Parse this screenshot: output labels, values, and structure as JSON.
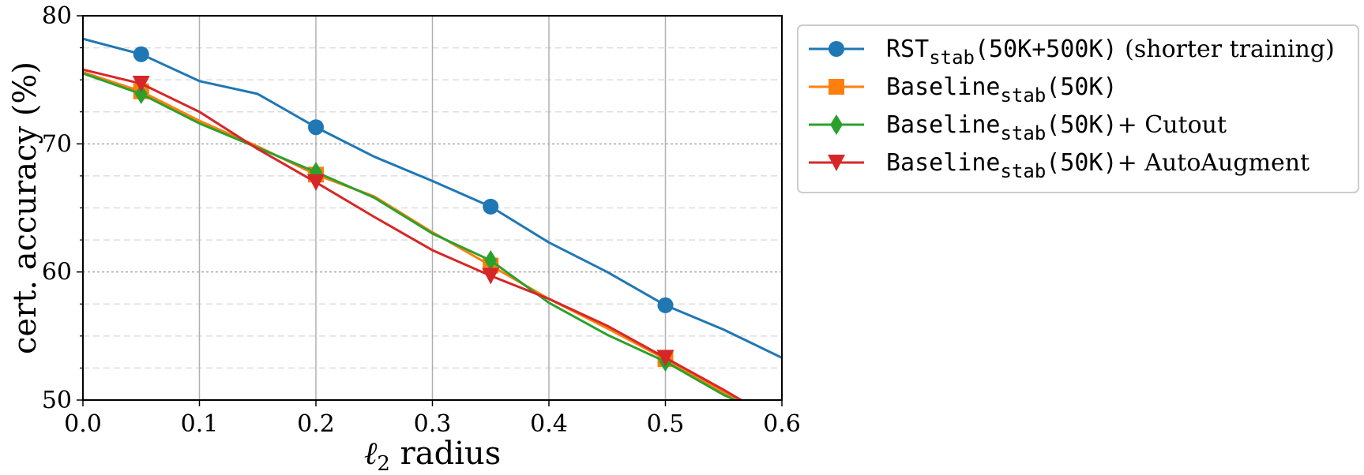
{
  "chart_data": {
    "type": "line",
    "xlabel_prefix": "ℓ",
    "xlabel_sub": "2",
    "xlabel_rest": " radius",
    "ylabel": "cert. accuracy (%)",
    "xlim": [
      0.0,
      0.6
    ],
    "ylim": [
      50,
      80
    ],
    "xticks": [
      0.0,
      0.1,
      0.2,
      0.3,
      0.4,
      0.5,
      0.6
    ],
    "xtick_labels": [
      "0.0",
      "0.1",
      "0.2",
      "0.3",
      "0.4",
      "0.5",
      "0.6"
    ],
    "yticks": [
      50,
      60,
      70,
      80
    ],
    "ytick_labels": [
      "50",
      "60",
      "70",
      "80"
    ],
    "grid": true,
    "legend_position": "outside-right-top",
    "series": [
      {
        "name_main": "RST",
        "name_sub": "stab",
        "name_paren": "(50K+500K)",
        "name_suffix": " (shorter training)",
        "color": "#1f77b4",
        "marker": "circle",
        "x": [
          0.0,
          0.05,
          0.1,
          0.15,
          0.2,
          0.25,
          0.3,
          0.35,
          0.4,
          0.45,
          0.5,
          0.55,
          0.6
        ],
        "values": [
          78.2,
          77.0,
          74.9,
          73.9,
          71.3,
          69.0,
          67.1,
          65.1,
          62.3,
          60.0,
          57.4,
          55.5,
          53.3
        ],
        "marker_x": [
          0.05,
          0.2,
          0.35,
          0.5
        ]
      },
      {
        "name_main": "Baseline",
        "name_sub": "stab",
        "name_paren": "(50K)",
        "name_suffix": "",
        "color": "#ff7f0e",
        "marker": "square",
        "x": [
          0.0,
          0.05,
          0.1,
          0.15,
          0.2,
          0.25,
          0.3,
          0.35,
          0.4,
          0.45,
          0.5,
          0.55,
          0.565
        ],
        "values": [
          75.6,
          74.1,
          71.8,
          69.8,
          67.6,
          65.9,
          63.1,
          60.5,
          57.9,
          55.6,
          53.2,
          50.6,
          50.0
        ],
        "marker_x": [
          0.05,
          0.2,
          0.35,
          0.5
        ]
      },
      {
        "name_main": "Baseline",
        "name_sub": "stab",
        "name_paren": "(50K)",
        "name_suffix": "+ Cutout",
        "color": "#2ca02c",
        "marker": "diamond",
        "x": [
          0.0,
          0.05,
          0.1,
          0.15,
          0.2,
          0.25,
          0.3,
          0.35,
          0.4,
          0.45,
          0.5,
          0.55,
          0.56
        ],
        "values": [
          75.5,
          73.9,
          71.6,
          69.7,
          67.8,
          65.8,
          63.0,
          60.9,
          57.6,
          55.1,
          53.0,
          50.4,
          50.0
        ],
        "marker_x": [
          0.05,
          0.2,
          0.35,
          0.5
        ]
      },
      {
        "name_main": "Baseline",
        "name_sub": "stab",
        "name_paren": "(50K)",
        "name_suffix": "+ AutoAugment",
        "color": "#d62728",
        "marker": "triangle-down",
        "x": [
          0.0,
          0.05,
          0.1,
          0.15,
          0.2,
          0.25,
          0.3,
          0.35,
          0.4,
          0.45,
          0.5,
          0.55,
          0.565
        ],
        "values": [
          75.8,
          74.7,
          72.5,
          69.6,
          67.0,
          64.3,
          61.7,
          59.7,
          57.9,
          55.8,
          53.3,
          50.8,
          50.0
        ],
        "marker_x": [
          0.05,
          0.2,
          0.35,
          0.5
        ]
      }
    ]
  }
}
